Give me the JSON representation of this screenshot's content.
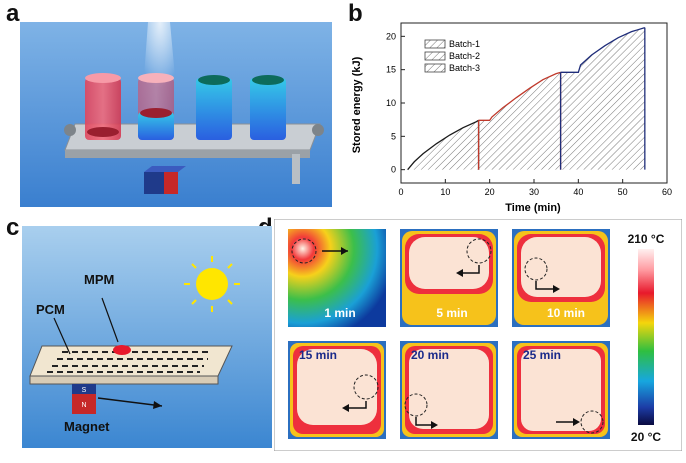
{
  "panels": {
    "a": {
      "letter": "a"
    },
    "b": {
      "letter": "b"
    },
    "c": {
      "letter": "c",
      "labels": {
        "mpm": "MPM",
        "pcm": "PCM",
        "magnet": "Magnet",
        "magnet_s": "S",
        "magnet_n": "N"
      }
    },
    "d": {
      "letter": "d",
      "colorbar": {
        "max_label": "210 °C",
        "min_label": "20 °C"
      },
      "tiles": [
        {
          "time": "1 min"
        },
        {
          "time": "5 min"
        },
        {
          "time": "10 min"
        },
        {
          "time": "15 min"
        },
        {
          "time": "20 min"
        },
        {
          "time": "25 min"
        }
      ]
    }
  },
  "chart_data": {
    "type": "area",
    "xlabel": "Time (min)",
    "ylabel": "Stored energy (kJ)",
    "xlim": [
      0,
      60
    ],
    "ylim": [
      -2,
      22
    ],
    "xticks": [
      0,
      10,
      20,
      30,
      40,
      50,
      60
    ],
    "yticks": [
      0,
      5,
      10,
      15,
      20
    ],
    "legend_position": "top-left",
    "series": [
      {
        "name": "Batch-1",
        "color": "#1a1a1a",
        "fill": "hatched",
        "x": [
          1.5,
          3,
          5,
          8,
          11,
          14,
          17,
          17.5
        ],
        "y": [
          0,
          1.2,
          2.4,
          3.9,
          5.2,
          6.3,
          7.2,
          7.4
        ]
      },
      {
        "name": "Batch-2",
        "color": "#c0392b",
        "fill": "hatched",
        "x": [
          17.5,
          20,
          20.5,
          23,
          26,
          29,
          32,
          35,
          36
        ],
        "y": [
          7.4,
          7.4,
          7.9,
          9.3,
          10.8,
          12.2,
          13.5,
          14.4,
          14.6
        ]
      },
      {
        "name": "Batch-3",
        "color": "#1f2d7a",
        "fill": "hatched",
        "x": [
          36,
          40,
          40.5,
          43,
          46,
          49,
          52,
          55
        ],
        "y": [
          14.6,
          14.6,
          15.7,
          17.2,
          18.6,
          19.8,
          20.7,
          21.3
        ]
      }
    ]
  }
}
